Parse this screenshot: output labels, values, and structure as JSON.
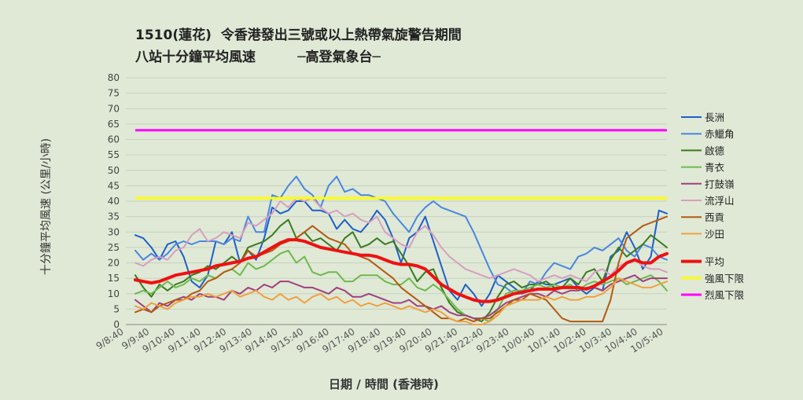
{
  "chart_data": {
    "type": "line",
    "title": "1510(蓮花)  令香港發出三號或以上熱帶氣旋警告期間",
    "subtitle": "八站十分鐘平均風速         ─高登氣象台─",
    "xlabel": "日期 / 時間 (香港時)",
    "ylabel": "十分鐘平均風速 (公里/小時)",
    "ylim": [
      0,
      80
    ],
    "yticks": [
      0,
      5,
      10,
      15,
      20,
      25,
      30,
      35,
      40,
      45,
      50,
      55,
      60,
      65,
      70,
      75,
      80
    ],
    "xtick_labels": [
      "9/8:40",
      "9/9:40",
      "9/10:40",
      "9/11:40",
      "9/12:40",
      "9/13:40",
      "9/14:40",
      "9/15:40",
      "9/16:40",
      "9/17:40",
      "9/18:40",
      "9/19:40",
      "9/20:40",
      "9/21:40",
      "9/22:40",
      "9/23:40",
      "10/0:40",
      "10/1:40",
      "10/2:40",
      "10/3:40",
      "10/4:40",
      "10/5:40"
    ],
    "grid": "horizontal",
    "legend_position": "right",
    "series": [
      {
        "name": "長洲",
        "color": "#1f5fc8",
        "width": 2,
        "values": [
          29,
          28,
          25,
          21,
          26,
          27,
          22,
          14,
          12,
          16,
          27,
          26,
          30,
          20,
          24,
          21,
          28,
          38,
          36,
          37,
          40,
          40,
          37,
          37,
          36,
          31,
          34,
          31,
          30,
          33,
          37,
          34,
          28,
          20,
          28,
          30,
          35,
          27,
          19,
          11,
          8,
          13,
          10,
          6,
          10,
          16,
          14,
          12,
          10,
          11,
          14,
          13,
          13,
          14,
          15,
          12,
          10,
          12,
          11,
          22,
          24,
          30,
          25,
          18,
          22,
          37,
          36
        ]
      },
      {
        "name": "赤鱲角",
        "color": "#4a86e0",
        "width": 2,
        "values": [
          24,
          21,
          23,
          21,
          23,
          26,
          27,
          26,
          27,
          27,
          27,
          26,
          28,
          27,
          35,
          30,
          30,
          42,
          41,
          45,
          48,
          44,
          42,
          38,
          45,
          48,
          43,
          44,
          42,
          42,
          41,
          40,
          36,
          33,
          30,
          35,
          38,
          40,
          38,
          37,
          36,
          35,
          30,
          24,
          18,
          13,
          12,
          10,
          10,
          14,
          13,
          17,
          20,
          19,
          18,
          22,
          23,
          25,
          24,
          26,
          28,
          24,
          22,
          26,
          25,
          22,
          21
        ]
      },
      {
        "name": "啟德",
        "color": "#3b7a1f",
        "width": 2,
        "values": [
          16,
          12,
          9,
          13,
          11,
          13,
          14,
          16,
          17,
          19,
          18,
          20,
          22,
          20,
          25,
          26,
          27,
          29,
          32,
          34,
          28,
          30,
          27,
          28,
          26,
          24,
          28,
          30,
          25,
          26,
          28,
          26,
          27,
          23,
          19,
          14,
          17,
          18,
          12,
          7,
          4,
          3,
          2,
          1,
          4,
          9,
          13,
          14,
          12,
          13,
          13,
          14,
          12,
          12,
          15,
          13,
          17,
          18,
          14,
          21,
          25,
          22,
          24,
          26,
          29,
          27,
          25
        ]
      },
      {
        "name": "青衣",
        "color": "#6fb84d",
        "width": 2,
        "values": [
          10,
          11,
          10,
          12,
          14,
          12,
          13,
          15,
          14,
          16,
          15,
          17,
          18,
          16,
          20,
          18,
          19,
          21,
          23,
          24,
          20,
          22,
          17,
          16,
          17,
          17,
          14,
          14,
          16,
          16,
          16,
          14,
          13,
          13,
          15,
          12,
          11,
          13,
          11,
          8,
          5,
          3,
          2,
          2,
          1,
          5,
          10,
          11,
          11,
          12,
          13,
          12,
          13,
          12,
          13,
          11,
          13,
          14,
          13,
          14,
          15,
          13,
          14,
          15,
          16,
          14,
          11
        ]
      },
      {
        "name": "打鼓嶺",
        "color": "#a0407e",
        "width": 2,
        "values": [
          8,
          6,
          4,
          7,
          6,
          8,
          9,
          8,
          10,
          9,
          9,
          8,
          11,
          10,
          12,
          11,
          13,
          12,
          14,
          14,
          13,
          12,
          12,
          11,
          10,
          12,
          11,
          9,
          9,
          10,
          9,
          8,
          7,
          7,
          8,
          6,
          6,
          5,
          6,
          4,
          3,
          3,
          2,
          2,
          3,
          5,
          7,
          8,
          9,
          10,
          10,
          9,
          11,
          10,
          11,
          11,
          12,
          12,
          11,
          13,
          14,
          15,
          16,
          14,
          15,
          15,
          15
        ]
      },
      {
        "name": "流浮山",
        "color": "#d89ec0",
        "width": 2,
        "values": [
          20,
          19,
          21,
          22,
          21,
          24,
          25,
          29,
          31,
          27,
          28,
          30,
          29,
          28,
          33,
          32,
          34,
          36,
          40,
          38,
          41,
          40,
          41,
          38,
          36,
          37,
          35,
          36,
          34,
          33,
          35,
          30,
          28,
          26,
          25,
          30,
          32,
          29,
          25,
          22,
          20,
          18,
          17,
          16,
          15,
          16,
          17,
          18,
          17,
          16,
          14,
          15,
          16,
          15,
          16,
          15,
          14,
          17,
          18,
          16,
          19,
          20,
          21,
          19,
          18,
          18,
          17
        ]
      },
      {
        "name": "西貢",
        "color": "#b35a11",
        "width": 2,
        "values": [
          4,
          5,
          4,
          6,
          7,
          8,
          8,
          10,
          11,
          14,
          15,
          17,
          18,
          20,
          24,
          22,
          23,
          24,
          26,
          27,
          28,
          30,
          32,
          30,
          28,
          27,
          26,
          23,
          22,
          21,
          19,
          17,
          15,
          12,
          10,
          8,
          6,
          4,
          2,
          2,
          1,
          2,
          1,
          2,
          2,
          4,
          6,
          8,
          8,
          10,
          9,
          8,
          5,
          2,
          1,
          1,
          1,
          1,
          1,
          8,
          20,
          28,
          30,
          32,
          33,
          34,
          35
        ]
      },
      {
        "name": "沙田",
        "color": "#f0a040",
        "width": 2,
        "values": [
          6,
          5,
          7,
          6,
          5,
          7,
          8,
          9,
          9,
          10,
          9,
          10,
          11,
          9,
          10,
          11,
          9,
          8,
          10,
          8,
          9,
          7,
          9,
          10,
          8,
          9,
          7,
          8,
          6,
          7,
          6,
          7,
          6,
          5,
          6,
          5,
          4,
          5,
          4,
          2,
          1,
          1,
          0,
          0,
          1,
          3,
          6,
          7,
          8,
          8,
          8,
          9,
          8,
          9,
          8,
          8,
          9,
          9,
          10,
          12,
          15,
          14,
          13,
          12,
          12,
          13,
          14
        ]
      },
      {
        "name": "平均",
        "color": "#ee1111",
        "width": 4,
        "values": [
          14.5,
          14,
          13.5,
          14,
          15,
          16,
          16.5,
          17,
          17.5,
          18,
          19,
          19.5,
          20,
          20.5,
          21.5,
          22,
          23.5,
          25,
          26.5,
          27.5,
          27.5,
          27,
          26,
          25,
          24.5,
          24,
          23.5,
          23,
          22.5,
          22.5,
          22,
          21,
          20,
          19.5,
          19.5,
          19,
          18,
          15.5,
          13,
          11.5,
          10,
          9,
          8,
          7.5,
          7.5,
          8,
          9,
          10,
          10.5,
          11,
          11.5,
          11.5,
          11.5,
          12,
          12,
          12,
          11.5,
          12.5,
          14,
          15.5,
          17.5,
          20,
          21,
          20,
          20,
          22,
          23
        ]
      },
      {
        "name": "強風下限",
        "color": "#ffff00",
        "width": 3,
        "constant": 41
      },
      {
        "name": "烈風下限",
        "color": "#ff00ff",
        "width": 3,
        "constant": 63
      }
    ]
  }
}
